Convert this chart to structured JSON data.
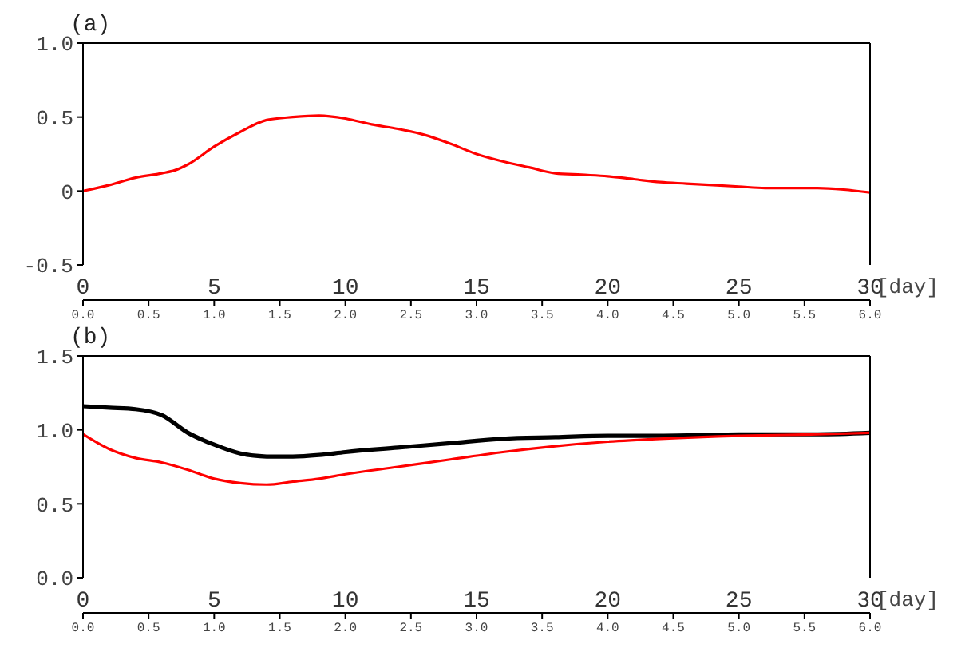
{
  "chart_data": [
    {
      "type": "line",
      "title": "(a)",
      "xlabel": "[day]",
      "marker": "none",
      "line_style": "solid",
      "x": [
        0,
        1,
        2,
        3,
        3.5,
        4,
        5,
        6,
        7,
        8,
        9,
        10,
        11,
        12,
        13,
        14,
        15,
        16,
        17,
        18,
        19,
        20,
        21,
        22,
        23,
        24,
        25,
        26,
        27,
        28,
        29,
        30
      ],
      "series": [
        {
          "color": "#ff0000",
          "values": [
            0,
            0.04,
            0.09,
            0.12,
            0.14,
            0.18,
            0.3,
            0.4,
            0.48,
            0.5,
            0.51,
            0.49,
            0.45,
            0.42,
            0.38,
            0.32,
            0.25,
            0.2,
            0.16,
            0.12,
            0.11,
            0.1,
            0.08,
            0.06,
            0.05,
            0.04,
            0.03,
            0.02,
            0.02,
            0.02,
            0.01,
            -0.01
          ]
        }
      ],
      "xlim": [
        0,
        30
      ],
      "xticks": [
        0,
        5,
        10,
        15,
        20,
        25,
        30
      ],
      "x2lim": [
        0,
        6
      ],
      "x2ticks": [
        {
          "value": 0,
          "label": "0.0"
        },
        0.5,
        {
          "value": 1,
          "label": "1.0"
        },
        1.5,
        {
          "value": 2,
          "label": "2.0"
        },
        2.5,
        {
          "value": 3,
          "label": "3.0"
        },
        3.5,
        {
          "value": 4,
          "label": "4.0"
        },
        4.5,
        {
          "value": 5,
          "label": "5.0"
        },
        5.5,
        {
          "value": 6,
          "label": "6.0"
        }
      ],
      "ylim": [
        -0.5,
        1
      ],
      "yticks": [
        {
          "value": -0.5,
          "label": "-0.5"
        },
        0,
        0.5,
        {
          "value": 1,
          "label": "1.0"
        }
      ]
    },
    {
      "type": "line",
      "title": "(b)",
      "xlabel": "[day]",
      "marker": "none",
      "line_style": "solid",
      "x": [
        0,
        1,
        2,
        3,
        4,
        5,
        6,
        7,
        8,
        9,
        10,
        12,
        14,
        16,
        18,
        20,
        22,
        25,
        28,
        30
      ],
      "series": [
        {
          "color": "#000000",
          "values": [
            1.16,
            1.15,
            1.14,
            1.1,
            0.98,
            0.9,
            0.84,
            0.82,
            0.82,
            0.83,
            0.85,
            0.88,
            0.91,
            0.94,
            0.95,
            0.96,
            0.96,
            0.97,
            0.97,
            0.98
          ]
        },
        {
          "color": "#ff0000",
          "values": [
            0.97,
            0.87,
            0.81,
            0.78,
            0.73,
            0.67,
            0.64,
            0.63,
            0.65,
            0.67,
            0.7,
            0.75,
            0.8,
            0.85,
            0.89,
            0.92,
            0.94,
            0.96,
            0.97,
            0.98
          ]
        }
      ],
      "xlim": [
        0,
        30
      ],
      "xticks": [
        0,
        5,
        10,
        15,
        20,
        25,
        30
      ],
      "x2lim": [
        0,
        6
      ],
      "x2ticks": [
        {
          "value": 0,
          "label": "0.0"
        },
        0.5,
        {
          "value": 1,
          "label": "1.0"
        },
        1.5,
        {
          "value": 2,
          "label": "2.0"
        },
        2.5,
        {
          "value": 3,
          "label": "3.0"
        },
        3.5,
        {
          "value": 4,
          "label": "4.0"
        },
        4.5,
        {
          "value": 5,
          "label": "5.0"
        },
        5.5,
        {
          "value": 6,
          "label": "6.0"
        }
      ],
      "ylim": [
        0,
        1.5
      ],
      "yticks": [
        {
          "value": 0,
          "label": "0.0"
        },
        0.5,
        {
          "value": 1,
          "label": "1.0"
        },
        1.5
      ]
    }
  ]
}
